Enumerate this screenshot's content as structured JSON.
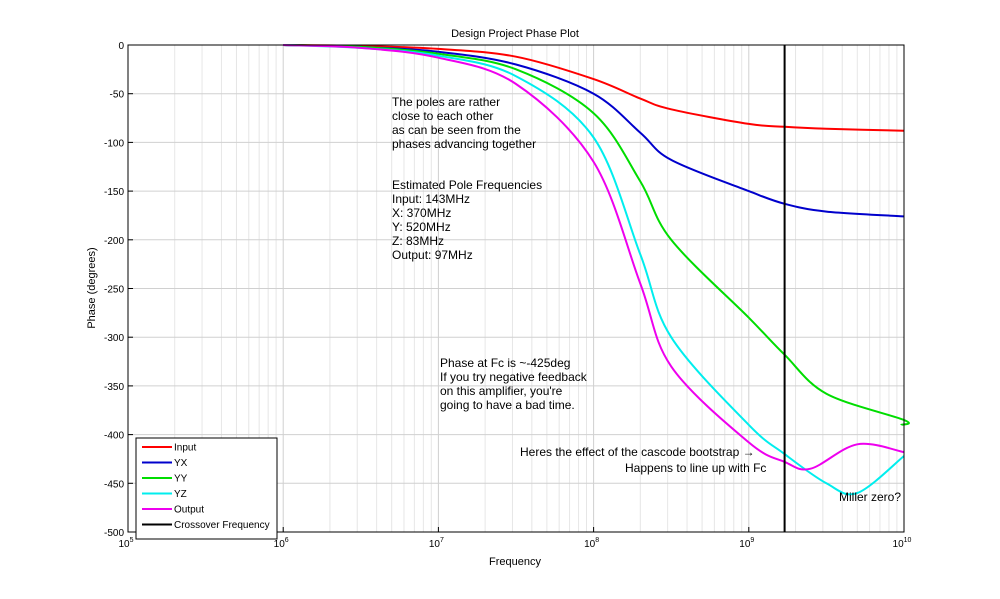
{
  "chart_data": {
    "type": "line",
    "title": "Design Project Phase Plot",
    "xlabel": "Frequency",
    "ylabel": "Phase (degrees)",
    "x_scale": "log",
    "xlim": [
      100000,
      10000000000
    ],
    "ylim": [
      -500,
      0
    ],
    "grid": true,
    "legend_position": "bottom-left",
    "x_ticks": [
      {
        "base": "10",
        "exp": "5",
        "value": 100000
      },
      {
        "base": "10",
        "exp": "6",
        "value": 1000000
      },
      {
        "base": "10",
        "exp": "7",
        "value": 10000000
      },
      {
        "base": "10",
        "exp": "8",
        "value": 100000000
      },
      {
        "base": "10",
        "exp": "9",
        "value": 1000000000
      },
      {
        "base": "10",
        "exp": "10",
        "value": 10000000000
      }
    ],
    "y_ticks": [
      "0",
      "-50",
      "-100",
      "-150",
      "-200",
      "-250",
      "-300",
      "-350",
      "-400",
      "-450",
      "-500"
    ],
    "series": [
      {
        "name": "Input",
        "color": "#ff0000",
        "x": [
          1000000,
          3160000,
          10000000,
          31600000,
          100000000,
          200000000,
          316000000,
          1000000000,
          1700000000,
          3160000000,
          10000000000
        ],
        "y": [
          0,
          -1,
          -4,
          -12,
          -35,
          -55,
          -66,
          -81,
          -84,
          -86,
          -88
        ]
      },
      {
        "name": "YX",
        "color": "#0000cc",
        "x": [
          1000000,
          3160000,
          10000000,
          31600000,
          100000000,
          200000000,
          316000000,
          1000000000,
          1700000000,
          3160000000,
          10000000000
        ],
        "y": [
          0,
          -2,
          -7,
          -20,
          -50,
          -90,
          -118,
          -150,
          -163,
          -171,
          -176
        ]
      },
      {
        "name": "YY",
        "color": "#00dd00",
        "x": [
          1000000,
          3160000,
          10000000,
          31600000,
          100000000,
          200000000,
          316000000,
          1000000000,
          1700000000,
          3160000000,
          10000000000,
          9550000000
        ],
        "y": [
          0,
          -2,
          -9,
          -25,
          -70,
          -140,
          -200,
          -280,
          -318,
          -358,
          -385,
          -390
        ]
      },
      {
        "name": "YZ",
        "color": "#00eeee",
        "x": [
          1000000,
          3160000,
          10000000,
          31600000,
          100000000,
          200000000,
          316000000,
          1000000000,
          1700000000,
          3160000000,
          5000000000,
          10000000000
        ],
        "y": [
          0,
          -3,
          -11,
          -32,
          -95,
          -215,
          -300,
          -390,
          -420,
          -450,
          -460,
          -422
        ]
      },
      {
        "name": "Output",
        "color": "#ee00ee",
        "x": [
          1000000,
          3160000,
          10000000,
          31600000,
          100000000,
          200000000,
          316000000,
          1000000000,
          1700000000,
          2500000000,
          5000000000,
          10000000000
        ],
        "y": [
          0,
          -3,
          -13,
          -40,
          -120,
          -245,
          -330,
          -408,
          -428,
          -435,
          -410,
          -418
        ]
      },
      {
        "name": "Crossover Frequency",
        "color": "#000000",
        "x": [
          1700000000,
          1700000000
        ],
        "y": [
          0,
          -500
        ]
      }
    ],
    "annotations": [
      {
        "lines": [
          "The poles are rather",
          "close to each other",
          "as can be seen from the",
          "phases advancing together"
        ]
      },
      {
        "lines": [
          "Estimated Pole Frequencies",
          "Input: 143MHz",
          "X: 370MHz",
          "Y: 520MHz",
          "Z: 83MHz",
          "Output: 97MHz"
        ]
      },
      {
        "lines": [
          "Phase at Fc is ~-425deg",
          "If you try negative feedback",
          "on this amplifier, you're",
          "going to have a bad time."
        ]
      },
      {
        "lines": [
          "Heres the effect of the cascode bootstrap →"
        ]
      },
      {
        "lines": [
          "Happens to line up with Fc"
        ]
      },
      {
        "lines": [
          "Miller zero?"
        ]
      }
    ]
  }
}
